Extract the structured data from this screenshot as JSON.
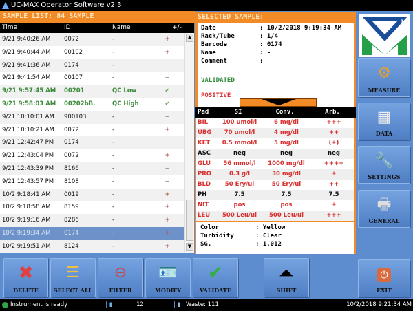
{
  "app": {
    "title": "UC-MAX Operator Software v2.3"
  },
  "sample_list": {
    "header": "SAMPLE LIST: 84 SAMPLE",
    "columns": [
      "Time",
      "ID",
      "Name",
      "+/-"
    ],
    "rows": [
      {
        "time": "9/21 9:40:26 AM",
        "id": "0072",
        "name": "-",
        "result": "+",
        "type": "plus"
      },
      {
        "time": "9/21 9:40:44 AM",
        "id": "00102",
        "name": "-",
        "result": "+",
        "type": "plus"
      },
      {
        "time": "9/21 9:41:36 AM",
        "id": "0174",
        "name": "-",
        "result": "−",
        "type": "minus"
      },
      {
        "time": "9/21 9:41:54 AM",
        "id": "00107",
        "name": "-",
        "result": "−",
        "type": "minus"
      },
      {
        "time": "9/21 9:57:45 AM",
        "id": "00201",
        "name": "QC Low",
        "result": "✔",
        "type": "check"
      },
      {
        "time": "9/21 9:58:03 AM",
        "id": "00202bB.",
        "name": "QC High",
        "result": "✔",
        "type": "check"
      },
      {
        "time": "9/21 10:10:01 AM",
        "id": "900103",
        "name": "-",
        "result": "−",
        "type": "minus"
      },
      {
        "time": "9/21 10:10:21 AM",
        "id": "0072",
        "name": "-",
        "result": "+",
        "type": "plus"
      },
      {
        "time": "9/21 12:42:47 PM",
        "id": "0174",
        "name": "-",
        "result": "−",
        "type": "minus"
      },
      {
        "time": "9/21 12:43:04 PM",
        "id": "0072",
        "name": "-",
        "result": "+",
        "type": "plus"
      },
      {
        "time": "9/21 12:43:39 PM",
        "id": "8166",
        "name": "-",
        "result": "−",
        "type": "minus"
      },
      {
        "time": "9/21 12:43:57 PM",
        "id": "8108",
        "name": "-",
        "result": "−",
        "type": "minus"
      },
      {
        "time": "10/2 9:18:41 AM",
        "id": "0019",
        "name": "-",
        "result": "+",
        "type": "plus"
      },
      {
        "time": "10/2 9:18:58 AM",
        "id": "8159",
        "name": "-",
        "result": "+",
        "type": "plus"
      },
      {
        "time": "10/2 9:19:16 AM",
        "id": "8286",
        "name": "-",
        "result": "+",
        "type": "plus"
      },
      {
        "time": "10/2 9:19:34 AM",
        "id": "0174",
        "name": "-",
        "result": "+",
        "type": "plus",
        "selected": true
      },
      {
        "time": "10/2 9:19:51 AM",
        "id": "8124",
        "name": "-",
        "result": "+",
        "type": "plus"
      }
    ]
  },
  "selected": {
    "header": "SELECTED SAMPLE:",
    "fields": [
      {
        "k": "Date",
        "v": "10/2/2018 9:19:34 AM"
      },
      {
        "k": "Rack/Tube",
        "v": "1/4"
      },
      {
        "k": "Barcode",
        "v": "0174"
      },
      {
        "k": "Name",
        "v": "-"
      },
      {
        "k": "Comment",
        "v": ""
      }
    ],
    "validated": "VALIDATED",
    "positive": "POSITIVE",
    "pad_columns": [
      "Pad",
      "SI",
      "Conv.",
      "Arb."
    ],
    "pads": [
      {
        "pad": "BIL",
        "si": "100 umol/l",
        "conv": "6 mg/dl",
        "arb": "+++",
        "abn": true
      },
      {
        "pad": "UBG",
        "si": "70 umol/l",
        "conv": "4 mg/dl",
        "arb": "++",
        "abn": true
      },
      {
        "pad": "KET",
        "si": "0.5 mmol/l",
        "conv": "5 mg/dl",
        "arb": "(+)",
        "abn": true
      },
      {
        "pad": "ASC",
        "si": "neg",
        "conv": "neg",
        "arb": "neg",
        "abn": false
      },
      {
        "pad": "GLU",
        "si": "56 mmol/l",
        "conv": "1000 mg/dl",
        "arb": "++++",
        "abn": true
      },
      {
        "pad": "PRO",
        "si": "0.3 g/l",
        "conv": "30 mg/dl",
        "arb": "+",
        "abn": true
      },
      {
        "pad": "BLD",
        "si": "50 Ery/ul",
        "conv": "50 Ery/ul",
        "arb": "++",
        "abn": true
      },
      {
        "pad": "PH",
        "si": "7.5",
        "conv": "7.5",
        "arb": "7.5",
        "abn": false
      },
      {
        "pad": "NIT",
        "si": "pos",
        "conv": "pos",
        "arb": "+",
        "abn": true
      },
      {
        "pad": "LEU",
        "si": "500 Leu/ul",
        "conv": "500 Leu/ul",
        "arb": "+++",
        "abn": true
      }
    ],
    "physical": [
      {
        "k": "Color",
        "v": "Yellow"
      },
      {
        "k": "Turbidity",
        "v": "Clear"
      },
      {
        "k": "SG.",
        "v": "1.012"
      }
    ]
  },
  "logo": {
    "text": "MENARINI"
  },
  "side": {
    "measure": "MEASURE",
    "data": "DATA",
    "settings": "SETTINGS",
    "general": "GENERAL",
    "exit": "EXIT"
  },
  "toolbar": {
    "delete": "DELETE",
    "select_all": "SELECT ALL",
    "filter": "FILTER",
    "modify": "MODIFY",
    "validate": "VALIDATE",
    "shift": "SHIFT"
  },
  "status": {
    "message": "Instrument is ready",
    "count": "12",
    "waste": "Waste: 111",
    "datetime": "10/2/2018 9:21:34 AM"
  }
}
